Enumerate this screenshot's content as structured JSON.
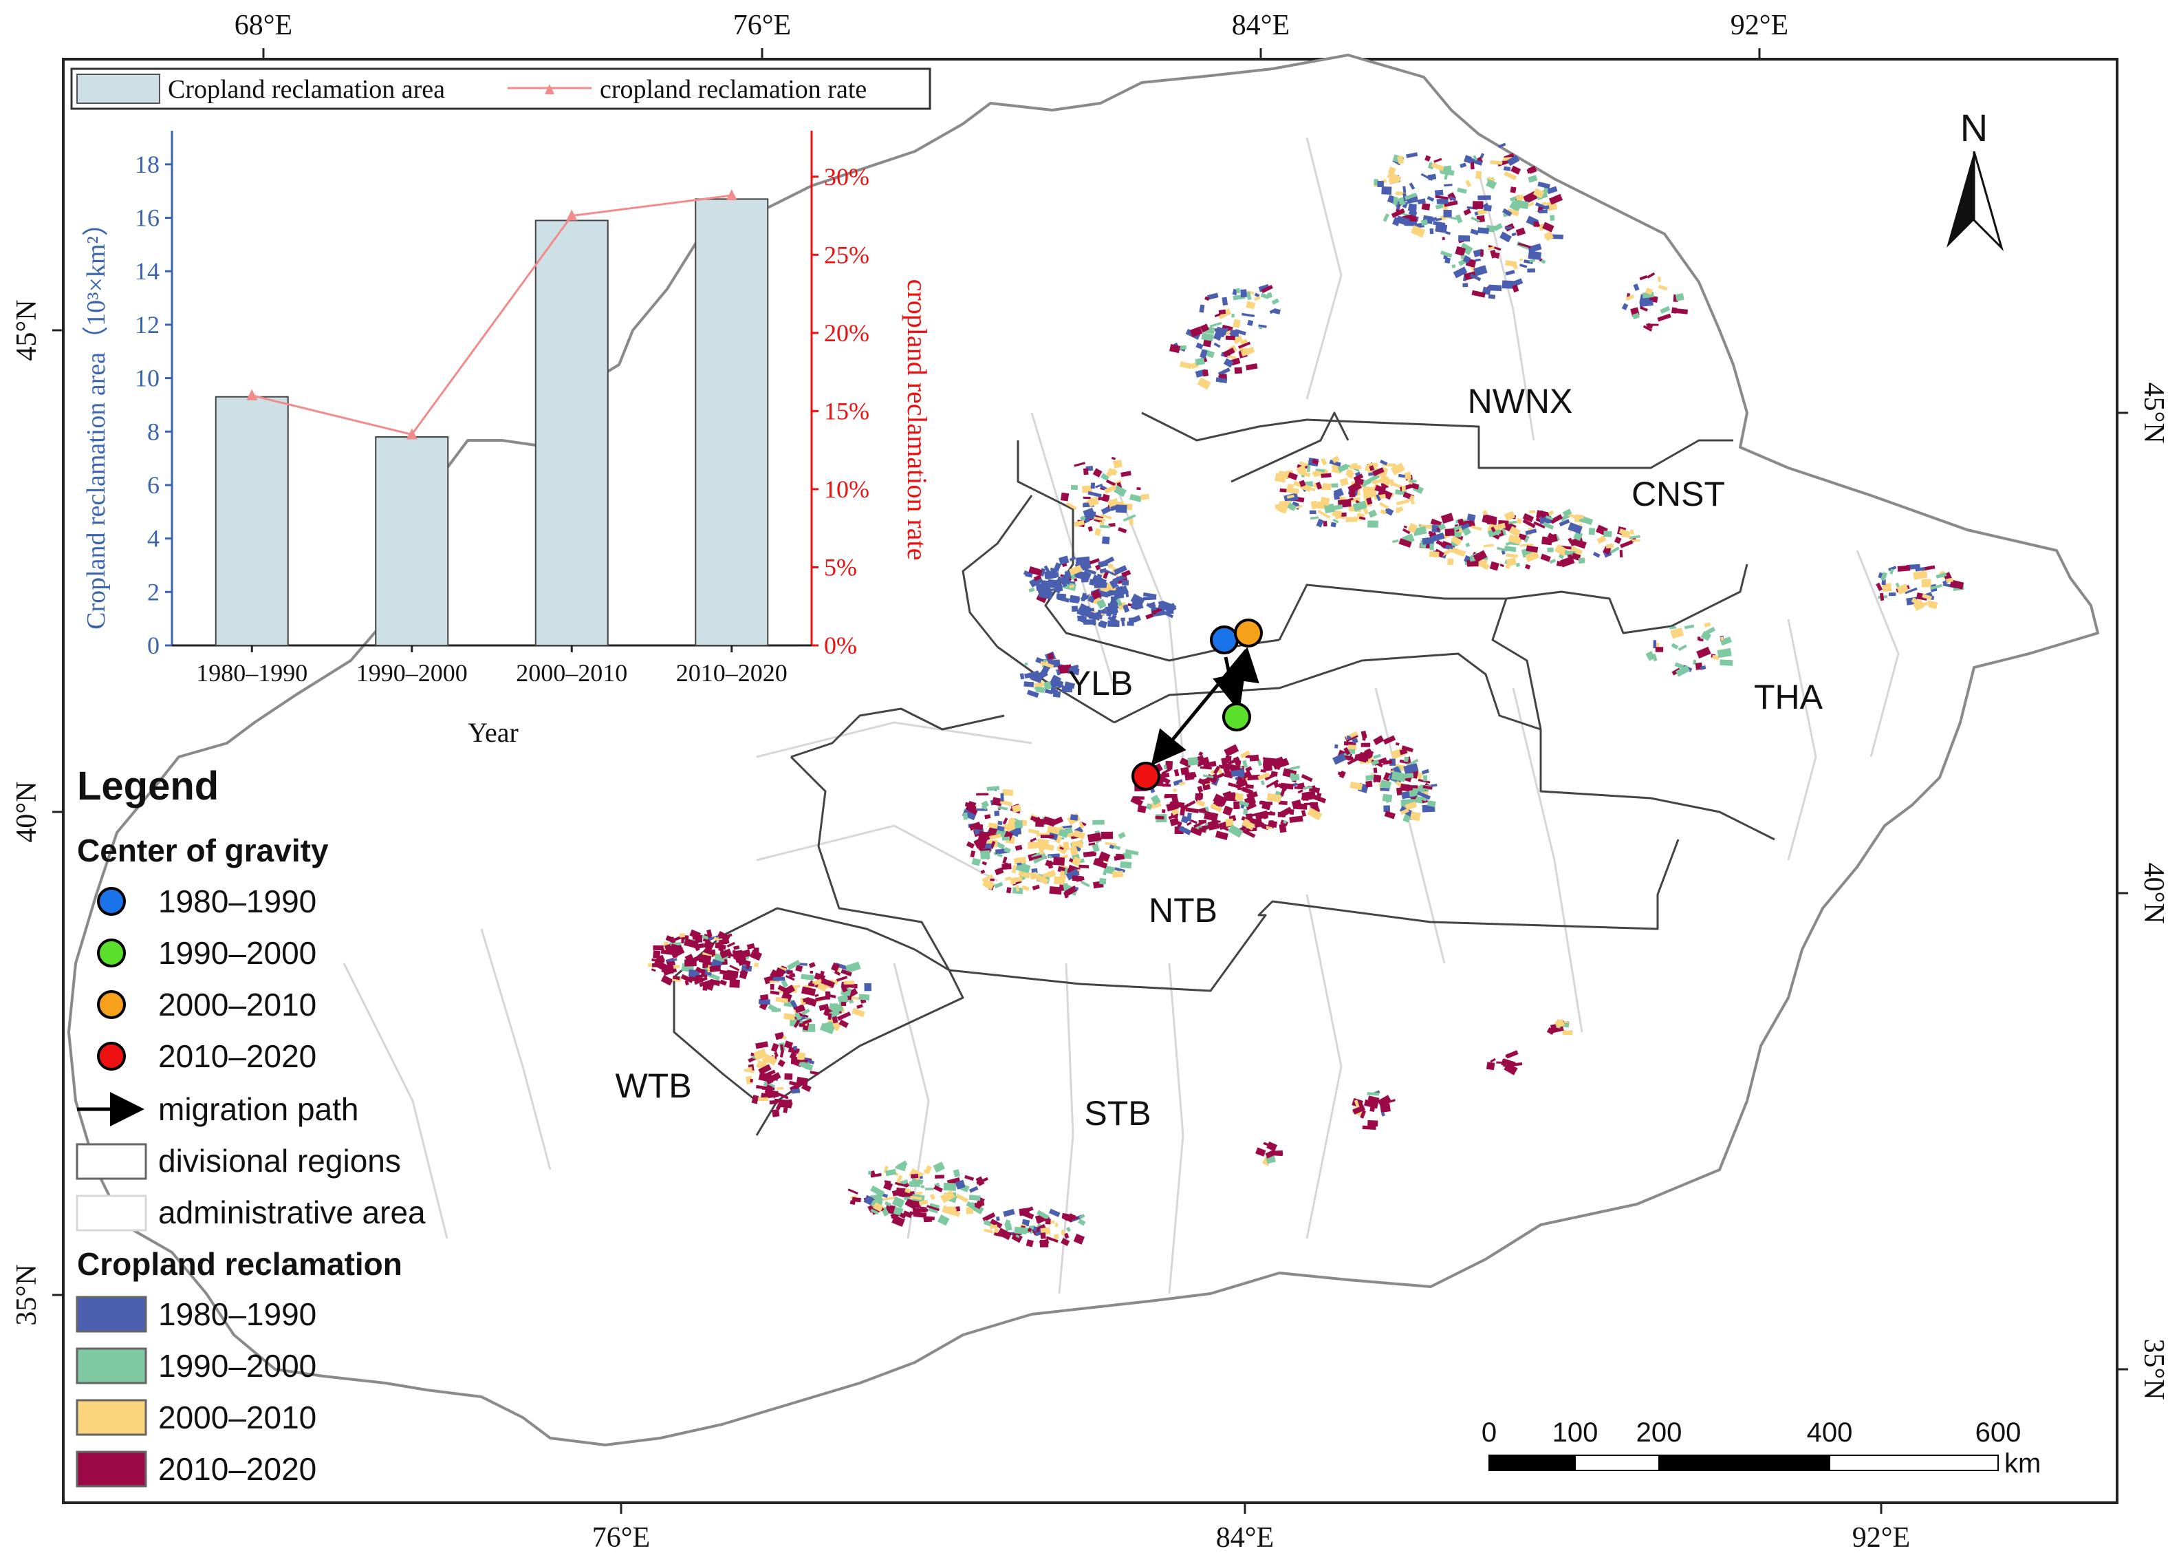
{
  "map": {
    "graticule": {
      "top": [
        "68°E",
        "76°E",
        "84°E",
        "92°E"
      ],
      "bottom": [
        "76°E",
        "84°E",
        "92°E"
      ],
      "left": [
        "45°N",
        "40°N",
        "35°N"
      ],
      "right": [
        "45°N",
        "40°N",
        "35°N"
      ]
    },
    "regions": [
      "NWNX",
      "CNST",
      "YLB",
      "THA",
      "NTB",
      "WTB",
      "STB"
    ],
    "north_arrow": "N",
    "scale_bar": {
      "labels": [
        "0",
        "100",
        "200",
        "400",
        "600"
      ],
      "unit": "km"
    },
    "colors": {
      "c1980": "#4b5fb0",
      "c1990": "#7ec8a2",
      "c2000": "#fbd47e",
      "c2010": "#9b0a47",
      "cog1980": "#1a73e8",
      "cog1990": "#5ae02a",
      "cog2000": "#f5a11c",
      "cog2010": "#ee1111"
    }
  },
  "legend": {
    "title": "Legend",
    "cog_title": "Center of gravity",
    "cog_items": [
      "1980–1990",
      "1990–2000",
      "2000–2010",
      "2010–2020"
    ],
    "migration": "migration path",
    "divisional": "divisional regions",
    "administrative": "administrative area",
    "crop_title": "Cropland reclamation",
    "crop_items": [
      "1980–1990",
      "1990–2000",
      "2000–2010",
      "2010–2020"
    ]
  },
  "chart_data": {
    "type": "bar",
    "categories": [
      "1980–1990",
      "1990–2000",
      "2000–2010",
      "2010–2020"
    ],
    "series": [
      {
        "name": "Cropland reclamation area",
        "type": "bar",
        "axis": "left",
        "values": [
          9.3,
          7.8,
          15.9,
          16.7
        ]
      },
      {
        "name": "cropland reclamation rate",
        "type": "line",
        "axis": "right",
        "values": [
          16,
          13.5,
          27.5,
          28.8
        ]
      }
    ],
    "xlabel": "Year",
    "ylabel": "Cropland reclamation area（10³×km²）",
    "y2label": "cropland reclamation rate",
    "ylim": [
      0,
      19
    ],
    "y2lim": [
      0,
      32.5
    ],
    "yticks": [
      "0",
      "2",
      "4",
      "6",
      "8",
      "10",
      "12",
      "14",
      "16",
      "18"
    ],
    "y2ticks": [
      "0%",
      "5%",
      "10%",
      "15%",
      "20%",
      "25%",
      "30%"
    ],
    "colors": {
      "bar": "#cde0e5",
      "line": "#f28b8b",
      "left_axis": "#3a64b0",
      "right_axis": "#ee1111"
    }
  }
}
